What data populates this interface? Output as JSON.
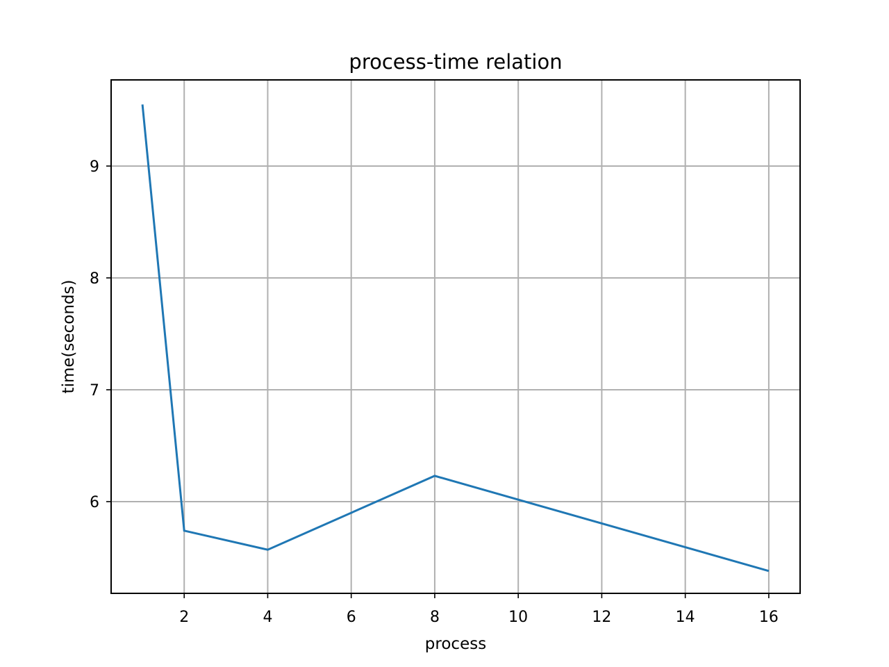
{
  "chart_data": {
    "type": "line",
    "title": "process-time relation",
    "xlabel": "process",
    "ylabel": "time(seconds)",
    "x": [
      1,
      2,
      4,
      8,
      16
    ],
    "series": [
      {
        "values": [
          9.55,
          5.74,
          5.57,
          6.23,
          5.38
        ]
      }
    ],
    "xlim": [
      0.25,
      16.75
    ],
    "ylim": [
      5.18,
      9.77
    ],
    "xticks": [
      2,
      4,
      6,
      8,
      10,
      12,
      14,
      16
    ],
    "yticks": [
      6,
      7,
      8,
      9
    ],
    "grid": true,
    "line_color": "#1f77b4",
    "grid_color": "#b0b0b0"
  }
}
